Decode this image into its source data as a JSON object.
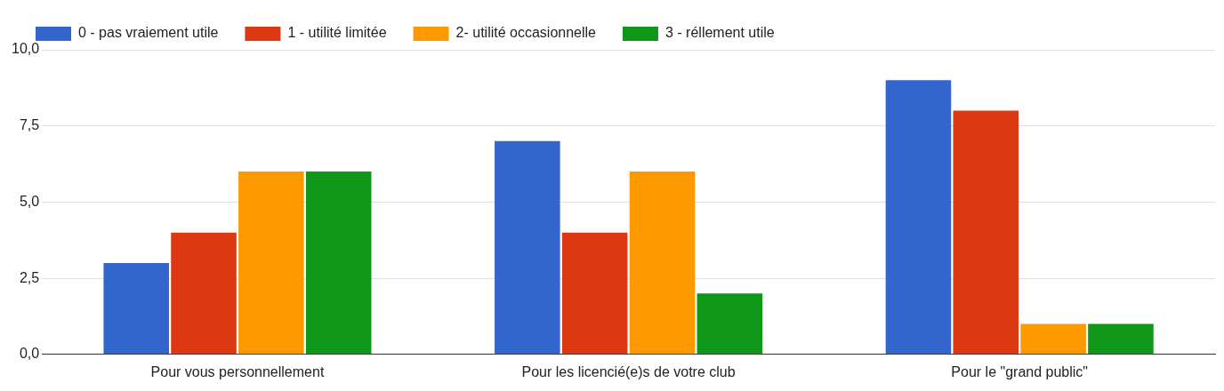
{
  "chart_data": {
    "type": "bar",
    "categories": [
      "Pour vous personnellement",
      "Pour les licencié(e)s de votre club",
      "Pour le \"grand public\""
    ],
    "series": [
      {
        "name": "0 - pas vraiement utile",
        "color": "#3366cc",
        "values": [
          3,
          7,
          9
        ]
      },
      {
        "name": "1 - utilité limitée",
        "color": "#dc3912",
        "values": [
          4,
          4,
          8
        ]
      },
      {
        "name": "2- utilité occasionnelle",
        "color": "#ff9900",
        "values": [
          6,
          6,
          1
        ]
      },
      {
        "name": "3 - réllement utile",
        "color": "#109618",
        "values": [
          6,
          2,
          1
        ]
      }
    ],
    "ylim": [
      0,
      10
    ],
    "yticks": [
      {
        "value": 0,
        "label": "0,0"
      },
      {
        "value": 2.5,
        "label": "2,5"
      },
      {
        "value": 5,
        "label": "5,0"
      },
      {
        "value": 7.5,
        "label": "7,5"
      },
      {
        "value": 10,
        "label": "10,0"
      }
    ],
    "grid": "y",
    "legend": "top"
  }
}
